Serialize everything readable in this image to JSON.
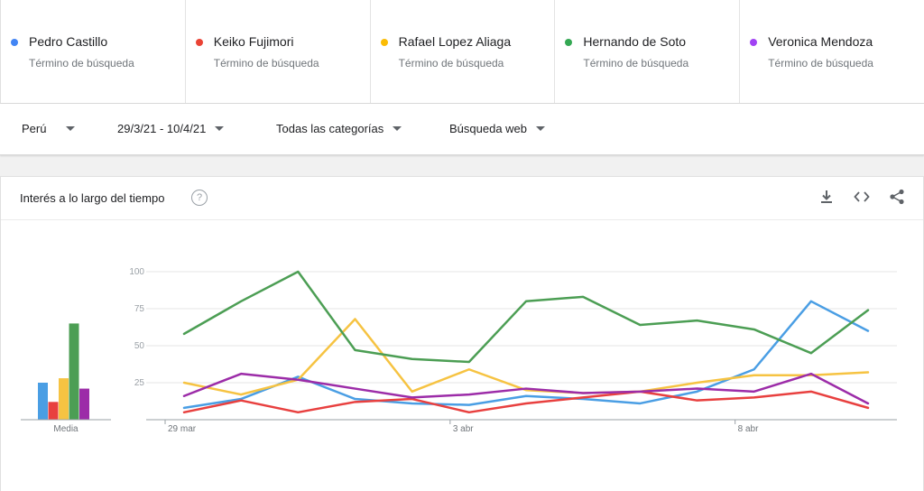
{
  "terms": [
    {
      "name": "Pedro Castillo",
      "sub": "Término de búsqueda",
      "color": "#4285f4"
    },
    {
      "name": "Keiko Fujimori",
      "sub": "Término de búsqueda",
      "color": "#ea4335"
    },
    {
      "name": "Rafael Lopez Aliaga",
      "sub": "Término de búsqueda",
      "color": "#fbbc04"
    },
    {
      "name": "Hernando de Soto",
      "sub": "Término de búsqueda",
      "color": "#34a853"
    },
    {
      "name": "Veronica Mendoza",
      "sub": "Término de búsqueda",
      "color": "#a142f4"
    }
  ],
  "filters": {
    "region": "Perú",
    "date_range": "29/3/21 - 10/4/21",
    "category": "Todas las categorías",
    "search_type": "Búsqueda web"
  },
  "card": {
    "title": "Interés a lo largo del tiempo",
    "help": "?",
    "icons": [
      "download-icon",
      "embed-icon",
      "share-icon"
    ]
  },
  "chart_data": {
    "type": "line",
    "x": [
      "29 mar",
      "30 mar",
      "31 mar",
      "1 abr",
      "2 abr",
      "3 abr",
      "4 abr",
      "5 abr",
      "6 abr",
      "7 abr",
      "8 abr",
      "9 abr",
      "10 abr"
    ],
    "x_tick_labels": [
      {
        "index": 0,
        "label": "29 mar"
      },
      {
        "index": 5,
        "label": "3 abr"
      },
      {
        "index": 10,
        "label": "8 abr"
      }
    ],
    "y_ticks": [
      25,
      50,
      75,
      100
    ],
    "ylim": [
      0,
      100
    ],
    "grid": true,
    "series": [
      {
        "name": "Pedro Castillo",
        "color": "#4a9ee4",
        "values": [
          8,
          14,
          29,
          14,
          11,
          10,
          16,
          14,
          11,
          19,
          34,
          80,
          60
        ]
      },
      {
        "name": "Keiko Fujimori",
        "color": "#e8403f",
        "values": [
          5,
          13,
          5,
          12,
          14,
          5,
          11,
          15,
          19,
          13,
          15,
          19,
          8
        ]
      },
      {
        "name": "Rafael Lopez Aliaga",
        "color": "#f6c342",
        "values": [
          25,
          17,
          27,
          68,
          19,
          34,
          20,
          18,
          19,
          25,
          30,
          30,
          32
        ]
      },
      {
        "name": "Hernando de Soto",
        "color": "#4c9e54",
        "values": [
          58,
          80,
          100,
          47,
          41,
          39,
          80,
          83,
          64,
          67,
          61,
          45,
          74
        ]
      },
      {
        "name": "Veronica Mendoza",
        "color": "#9c2ca8",
        "values": [
          16,
          31,
          27,
          21,
          15,
          17,
          21,
          18,
          19,
          21,
          19,
          31,
          11
        ]
      }
    ],
    "averages": {
      "label": "Media",
      "values": [
        25,
        12,
        28,
        65,
        21
      ],
      "colors": [
        "#4a9ee4",
        "#e8403f",
        "#f6c342",
        "#4c9e54",
        "#9c2ca8"
      ]
    }
  }
}
